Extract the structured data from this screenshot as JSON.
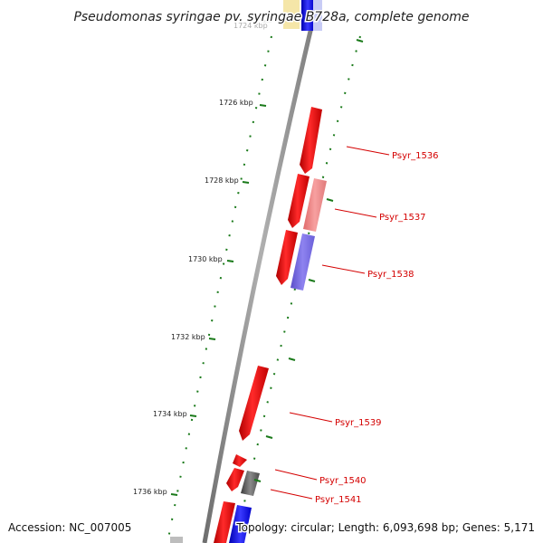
{
  "title": "Pseudomonas syringae pv. syringae B728a, complete genome",
  "footer": {
    "accession": "Accession: NC_007005",
    "topology": "Topology: circular; Length: 6,093,698 bp; Genes: 5,171"
  },
  "ticks": [
    {
      "label": "1724 kbp"
    },
    {
      "label": "1726 kbp"
    },
    {
      "label": "1728 kbp"
    },
    {
      "label": "1730 kbp"
    },
    {
      "label": "1732 kbp"
    },
    {
      "label": "1734 kbp"
    },
    {
      "label": "1736 kbp"
    }
  ],
  "gene_labels": [
    "Psyr_1536",
    "Psyr_1537",
    "Psyr_1538",
    "Psyr_1539",
    "Psyr_1540",
    "Psyr_1541"
  ],
  "colors": {
    "backbone": "#8c8c8c",
    "tick": "#1a7a1a",
    "gene_red": "#ff0000",
    "gene_pink": "#f08080",
    "gene_purple": "#7b68ee",
    "gene_dark": "#666666",
    "gene_blue": "#0000ff",
    "label": "#d40000"
  }
}
